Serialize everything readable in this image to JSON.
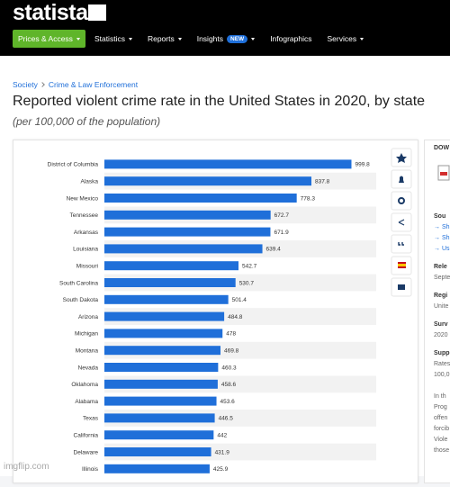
{
  "header": {
    "logo": "statista",
    "nav": [
      "Prices & Access",
      "Statistics",
      "Reports",
      "Insights",
      "Infographics",
      "Services"
    ],
    "nav_badge": "NEW"
  },
  "breadcrumb": [
    "Society",
    "Crime & Law Enforcement"
  ],
  "title": "Reported violent crime rate in the United States in 2020, by state",
  "subtitle": "(per 100,000 of the population)",
  "chart_data": {
    "type": "bar",
    "orientation": "horizontal",
    "categories": [
      "District of Columbia",
      "Alaska",
      "New Mexico",
      "Tennessee",
      "Arkansas",
      "Louisiana",
      "Missouri",
      "South Carolina",
      "South Dakota",
      "Arizona",
      "Michigan",
      "Montana",
      "Nevada",
      "Oklahoma",
      "Alabama",
      "Texas",
      "California",
      "Delaware",
      "Illinois"
    ],
    "values": [
      999.8,
      837.8,
      778.3,
      672.7,
      671.9,
      639.4,
      542.7,
      530.7,
      501.4,
      484.8,
      478,
      469.8,
      460.3,
      458.6,
      453.6,
      446.5,
      442,
      431.9,
      425.9
    ],
    "color": "#1f6fd9",
    "xlim": [
      0,
      1100
    ]
  },
  "sidebar": [
    "DOW",
    "Sou",
    "→ Sh",
    "→ Sh",
    "→ Us",
    "Rele",
    "Septe",
    "Regi",
    "Unite",
    "Surv",
    "2020",
    "Supp",
    "Rates",
    "100,0",
    "In th",
    "Prog",
    "offen",
    "forcib",
    "Viole",
    "those"
  ],
  "watermark": "imgflip.com"
}
